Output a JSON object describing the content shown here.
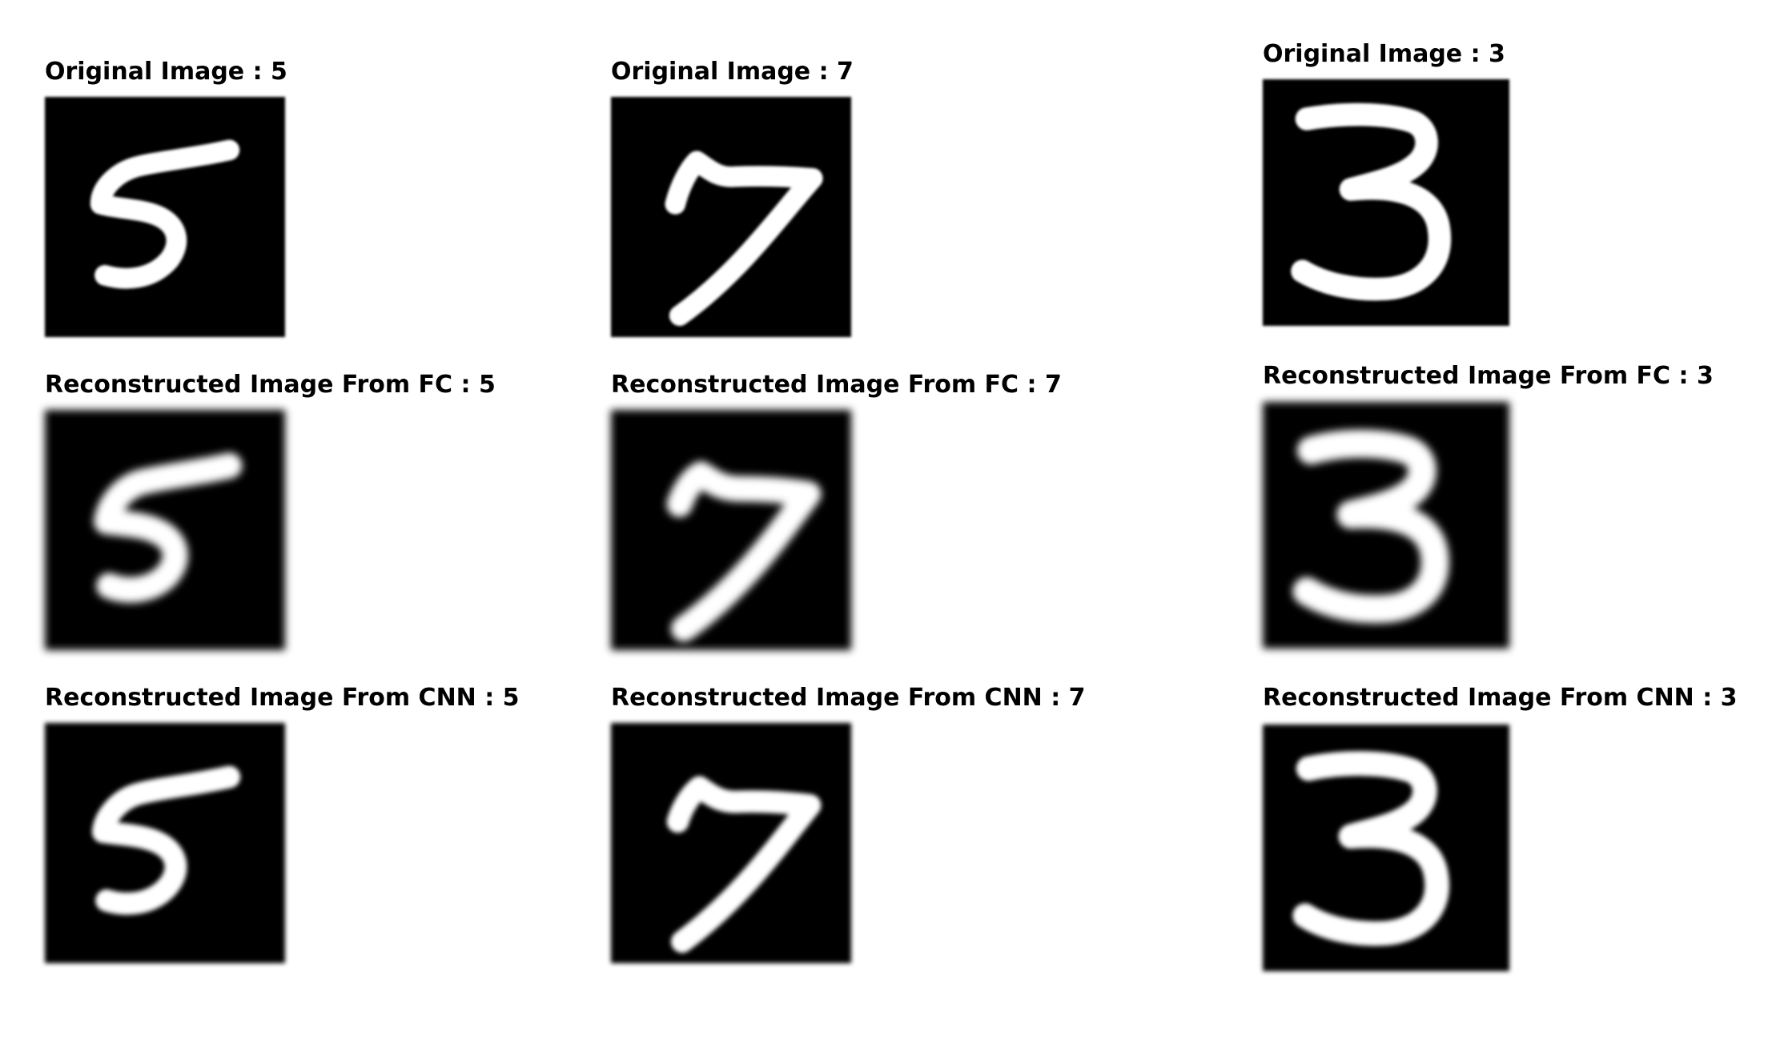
{
  "columns": [
    {
      "digit": "5",
      "panels": [
        {
          "title": "Original Image : 5",
          "kind": "original"
        },
        {
          "title": "Reconstructed Image From FC : 5",
          "kind": "fc"
        },
        {
          "title": "Reconstructed Image From CNN : 5",
          "kind": "cnn"
        }
      ]
    },
    {
      "digit": "7",
      "panels": [
        {
          "title": "Original Image : 7",
          "kind": "original"
        },
        {
          "title": "Reconstructed Image From FC : 7",
          "kind": "fc"
        },
        {
          "title": "Reconstructed Image From CNN : 7",
          "kind": "cnn"
        }
      ]
    },
    {
      "digit": "3",
      "panels": [
        {
          "title": "Original Image : 3",
          "kind": "original"
        },
        {
          "title": "Reconstructed Image From FC : 3",
          "kind": "fc"
        },
        {
          "title": "Reconstructed Image From CNN : 3",
          "kind": "cnn"
        }
      ]
    }
  ]
}
